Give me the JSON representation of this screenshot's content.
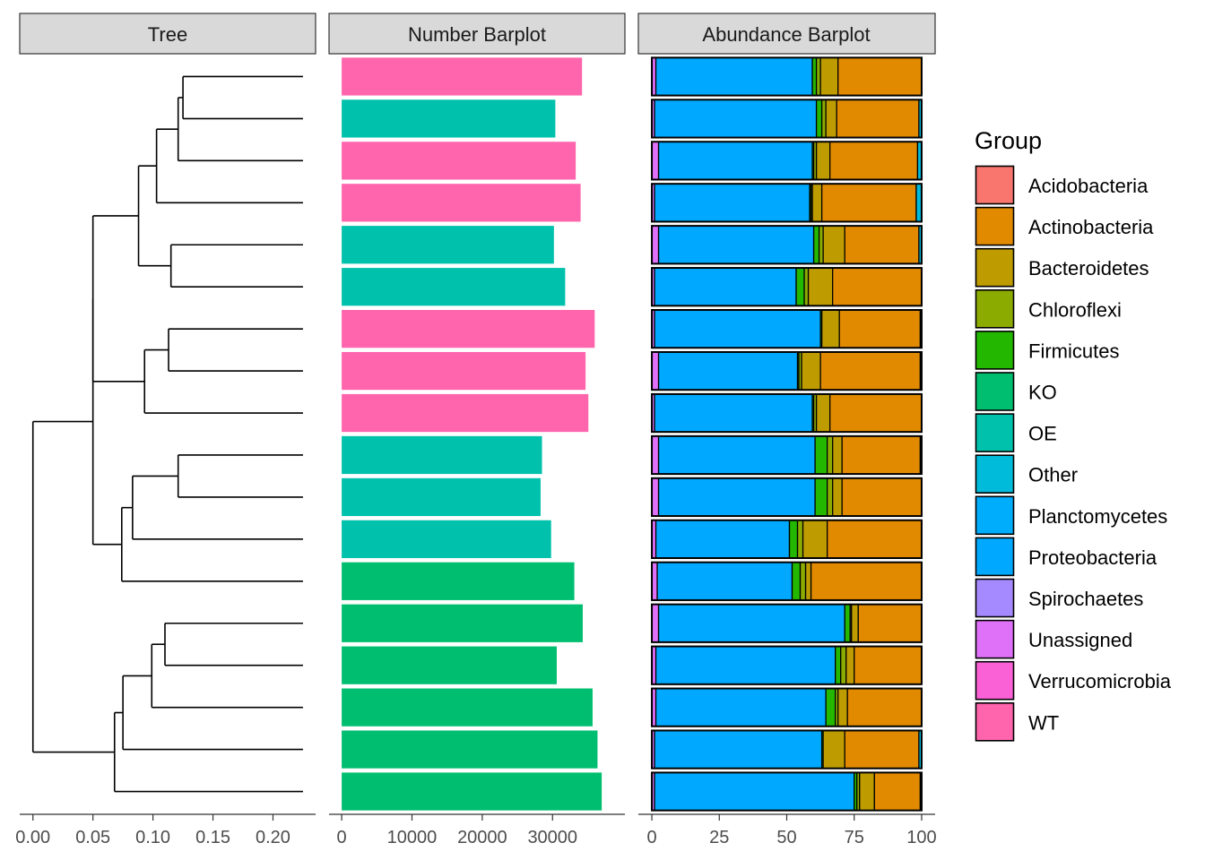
{
  "chart_data": {
    "type": "bar",
    "panels": [
      {
        "id": "tree",
        "title": "Tree",
        "xlim": [
          -0.011,
          0.2355
        ],
        "ticks": [
          0.0,
          0.05,
          0.1,
          0.15,
          0.2
        ],
        "tick_labels": [
          "0.00",
          "0.05",
          "0.10",
          "0.15",
          "0.20"
        ]
      },
      {
        "id": "number",
        "title": "Number Barplot",
        "xlim": [
          -1800,
          40300
        ],
        "ticks": [
          0,
          10000,
          20000,
          30000
        ],
        "tick_labels": [
          "0",
          "10000",
          "20000",
          "30000"
        ]
      },
      {
        "id": "abundance",
        "title": "Abundance Barplot",
        "xlim": [
          -5,
          105
        ],
        "ticks": [
          0,
          25,
          50,
          75,
          100
        ],
        "tick_labels": [
          "0",
          "25",
          "50",
          "75",
          "100"
        ]
      }
    ],
    "tree": {
      "tip_length": 0.225,
      "tips_top_to_bottom": [
        "t1",
        "t2",
        "t3",
        "t4",
        "t5",
        "t6",
        "t7",
        "t8",
        "t9",
        "t10",
        "t11",
        "t12",
        "t13",
        "t14",
        "t15",
        "t16",
        "t17",
        "t18"
      ],
      "nodes": [
        {
          "id": "n1",
          "height": 0.125,
          "children": [
            "t1",
            "t2"
          ]
        },
        {
          "id": "n2",
          "height": 0.121,
          "children": [
            "n1",
            "t3"
          ]
        },
        {
          "id": "n3",
          "height": 0.103,
          "children": [
            "n2",
            "t4"
          ]
        },
        {
          "id": "n4",
          "height": 0.115,
          "children": [
            "t5",
            "t6"
          ]
        },
        {
          "id": "n5",
          "height": 0.088,
          "children": [
            "n3",
            "n4"
          ]
        },
        {
          "id": "n6",
          "height": 0.113,
          "children": [
            "t7",
            "t8"
          ]
        },
        {
          "id": "n7",
          "height": 0.093,
          "children": [
            "n6",
            "t9"
          ]
        },
        {
          "id": "n8",
          "height": 0.05,
          "children": [
            "n5",
            "n7"
          ]
        },
        {
          "id": "n9",
          "height": 0.121,
          "children": [
            "t10",
            "t11"
          ]
        },
        {
          "id": "n10",
          "height": 0.083,
          "children": [
            "n9",
            "t12"
          ]
        },
        {
          "id": "n11",
          "height": 0.074,
          "children": [
            "n10",
            "t13"
          ]
        },
        {
          "id": "n12",
          "height": 0.05,
          "children": [
            "n8",
            "n11"
          ]
        },
        {
          "id": "n13",
          "height": 0.11,
          "children": [
            "t14",
            "t15"
          ]
        },
        {
          "id": "n14",
          "height": 0.099,
          "children": [
            "n13",
            "t16"
          ]
        },
        {
          "id": "n15",
          "height": 0.075,
          "children": [
            "n14",
            "t17"
          ]
        },
        {
          "id": "n16",
          "height": 0.068,
          "children": [
            "n15",
            "t18"
          ]
        },
        {
          "id": "root",
          "height": 0.0,
          "children": [
            "n12",
            "n16"
          ]
        }
      ]
    },
    "number_bars": {
      "categories": [
        "t1",
        "t2",
        "t3",
        "t4",
        "t5",
        "t6",
        "t7",
        "t8",
        "t9",
        "t10",
        "t11",
        "t12",
        "t13",
        "t14",
        "t15",
        "t16",
        "t17",
        "t18"
      ],
      "values": [
        34200,
        30400,
        33300,
        34000,
        30200,
        31800,
        36000,
        34700,
        35100,
        28500,
        28300,
        29800,
        33100,
        34300,
        30600,
        35700,
        36400,
        37000
      ],
      "groups": [
        "WT",
        "OE",
        "WT",
        "WT",
        "OE",
        "OE",
        "WT",
        "WT",
        "WT",
        "OE",
        "OE",
        "OE",
        "KO",
        "KO",
        "KO",
        "KO",
        "KO",
        "KO"
      ]
    },
    "abundance_order": [
      "Unassigned",
      "Proteobacteria",
      "Firmicutes",
      "Chloroflexi",
      "Bacteroidetes",
      "Actinobacteria",
      "Other"
    ],
    "abundance_rows": [
      [
        1.5,
        58.0,
        1.5,
        1.5,
        6.5,
        31.0,
        0.0
      ],
      [
        1.0,
        60.0,
        2.0,
        1.5,
        4.0,
        30.5,
        1.0
      ],
      [
        2.5,
        57.0,
        0.5,
        1.0,
        5.0,
        32.5,
        1.5
      ],
      [
        1.0,
        57.5,
        0.5,
        0.5,
        3.5,
        35.0,
        2.0
      ],
      [
        2.5,
        57.5,
        2.0,
        1.5,
        8.0,
        27.5,
        1.0
      ],
      [
        1.0,
        52.5,
        3.0,
        1.5,
        9.0,
        33.0,
        0.0
      ],
      [
        1.0,
        61.5,
        0.5,
        0.0,
        6.5,
        30.0,
        0.5
      ],
      [
        2.5,
        51.5,
        0.5,
        1.0,
        7.0,
        37.0,
        0.5
      ],
      [
        1.0,
        58.5,
        0.5,
        1.0,
        5.0,
        34.0,
        0.0
      ],
      [
        2.5,
        58.0,
        4.5,
        2.0,
        3.5,
        29.0,
        0.5
      ],
      [
        2.5,
        58.0,
        4.5,
        2.0,
        3.5,
        29.5,
        0.0
      ],
      [
        1.5,
        49.5,
        3.0,
        2.0,
        9.0,
        35.0,
        0.0
      ],
      [
        2.0,
        50.0,
        3.0,
        2.0,
        2.0,
        41.0,
        0.0
      ],
      [
        2.5,
        69.0,
        2.0,
        0.5,
        2.5,
        23.5,
        0.0
      ],
      [
        1.5,
        66.5,
        2.0,
        2.0,
        3.0,
        25.0,
        0.0
      ],
      [
        1.5,
        63.0,
        3.5,
        1.0,
        3.5,
        27.5,
        0.0
      ],
      [
        1.0,
        62.0,
        0.5,
        0.0,
        8.0,
        27.5,
        1.0
      ],
      [
        1.0,
        74.0,
        1.0,
        1.0,
        5.5,
        17.0,
        0.5
      ]
    ],
    "legend": {
      "title": "Group",
      "position": "right",
      "items": [
        "Acidobacteria",
        "Actinobacteria",
        "Bacteroidetes",
        "Chloroflexi",
        "Firmicutes",
        "KO",
        "OE",
        "Other",
        "Planctomycetes",
        "Proteobacteria",
        "Spirochaetes",
        "Unassigned",
        "Verrucomicrobia",
        "WT"
      ]
    },
    "colors": {
      "Acidobacteria": "#F8766D",
      "Actinobacteria": "#E18A00",
      "Bacteroidetes": "#BE9C00",
      "Chloroflexi": "#8CAB00",
      "Firmicutes": "#24B700",
      "KO": "#00BE70",
      "OE": "#00C1AB",
      "Other": "#00BBDA",
      "Planctomycetes": "#00ACFC",
      "Proteobacteria": "#00A9FF",
      "Spirochaetes": "#A58AFF",
      "Unassigned": "#DF70F8",
      "Verrucomicrobia": "#FB61D7",
      "WT": "#FF65AC"
    },
    "grid": false
  }
}
